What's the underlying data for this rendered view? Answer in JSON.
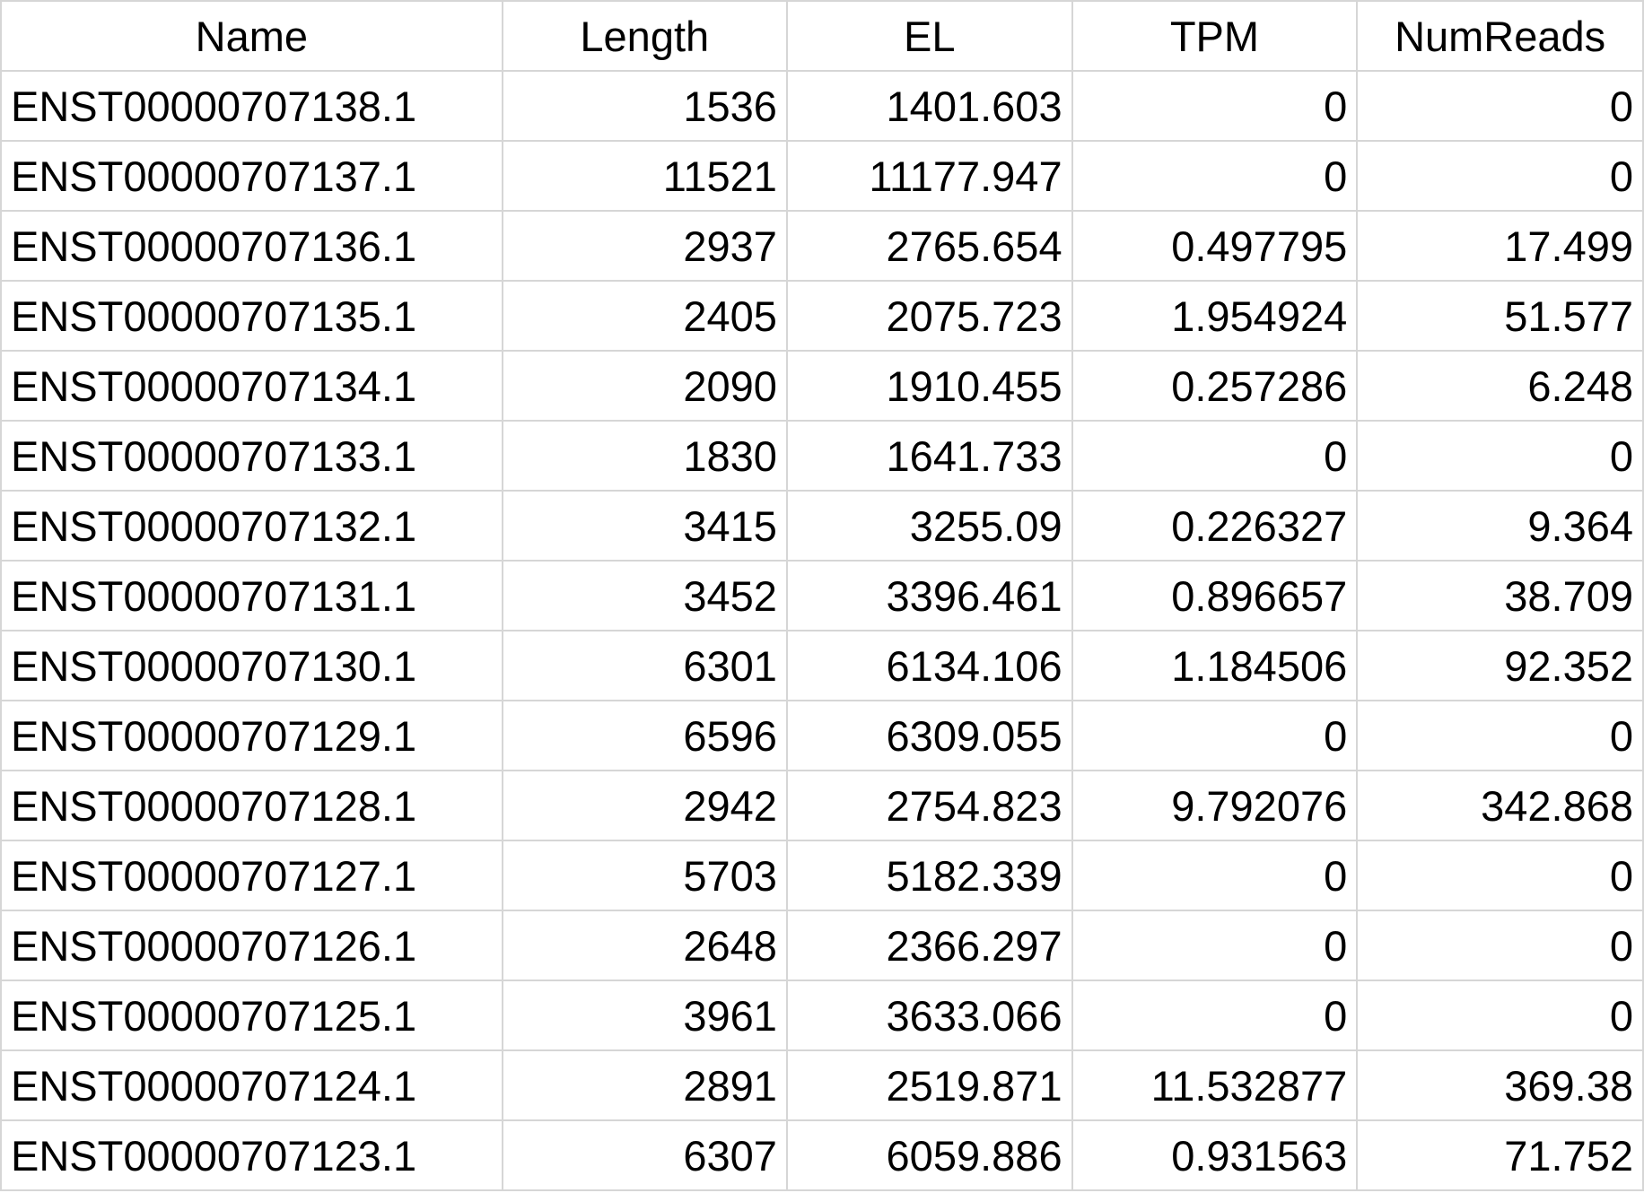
{
  "table": {
    "headers": [
      "Name",
      "Length",
      "EL",
      "TPM",
      "NumReads"
    ],
    "rows": [
      [
        "ENST00000707138.1",
        "1536",
        "1401.603",
        "0",
        "0"
      ],
      [
        "ENST00000707137.1",
        "11521",
        "11177.947",
        "0",
        "0"
      ],
      [
        "ENST00000707136.1",
        "2937",
        "2765.654",
        "0.497795",
        "17.499"
      ],
      [
        "ENST00000707135.1",
        "2405",
        "2075.723",
        "1.954924",
        "51.577"
      ],
      [
        "ENST00000707134.1",
        "2090",
        "1910.455",
        "0.257286",
        "6.248"
      ],
      [
        "ENST00000707133.1",
        "1830",
        "1641.733",
        "0",
        "0"
      ],
      [
        "ENST00000707132.1",
        "3415",
        "3255.09",
        "0.226327",
        "9.364"
      ],
      [
        "ENST00000707131.1",
        "3452",
        "3396.461",
        "0.896657",
        "38.709"
      ],
      [
        "ENST00000707130.1",
        "6301",
        "6134.106",
        "1.184506",
        "92.352"
      ],
      [
        "ENST00000707129.1",
        "6596",
        "6309.055",
        "0",
        "0"
      ],
      [
        "ENST00000707128.1",
        "2942",
        "2754.823",
        "9.792076",
        "342.868"
      ],
      [
        "ENST00000707127.1",
        "5703",
        "5182.339",
        "0",
        "0"
      ],
      [
        "ENST00000707126.1",
        "2648",
        "2366.297",
        "0",
        "0"
      ],
      [
        "ENST00000707125.1",
        "3961",
        "3633.066",
        "0",
        "0"
      ],
      [
        "ENST00000707124.1",
        "2891",
        "2519.871",
        "11.532877",
        "369.38"
      ],
      [
        "ENST00000707123.1",
        "6307",
        "6059.886",
        "0.931563",
        "71.752"
      ]
    ]
  }
}
